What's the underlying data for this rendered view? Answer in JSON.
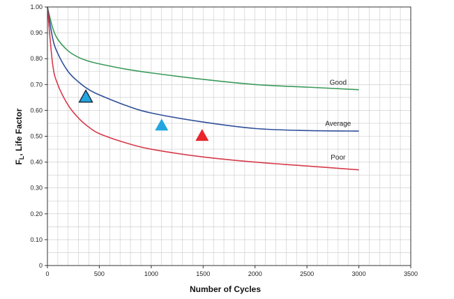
{
  "colors": {
    "good": "#3a9a5a",
    "average": "#2f4f9a",
    "poor": "#d63a4a",
    "marker_blue": "#22a6e0",
    "marker_red": "#e8262c",
    "grid": "#c8c8c8",
    "axis": "#333333"
  },
  "chart_data": {
    "type": "line",
    "xlabel": "Number of Cycles",
    "ylabel_main": "F",
    "ylabel_sub": "L",
    "ylabel_rest": ", Life Factor",
    "xlim": [
      0,
      3500
    ],
    "ylim": [
      0,
      1.0
    ],
    "grid": true,
    "x_ticks": [
      0,
      500,
      1000,
      1500,
      2000,
      2500,
      3000,
      3500
    ],
    "y_ticks": [
      0,
      0.1,
      0.2,
      0.3,
      0.4,
      0.5,
      0.6,
      0.7,
      0.8,
      0.9,
      1.0
    ],
    "x_tick_labels": [
      "0",
      "500",
      "1000",
      "1500",
      "2000",
      "2500",
      "3000",
      "3500"
    ],
    "y_tick_labels": [
      "0",
      "0.10",
      "0.20",
      "0.30",
      "0.40",
      "0.50",
      "0.60",
      "0.70",
      "0.80",
      "0.90",
      "1.00"
    ],
    "series": [
      {
        "name": "Good",
        "color_key": "good",
        "x": [
          0,
          50,
          100,
          200,
          300,
          400,
          500,
          750,
          1000,
          1500,
          2000,
          2500,
          3000
        ],
        "y": [
          1.0,
          0.92,
          0.875,
          0.83,
          0.805,
          0.79,
          0.78,
          0.76,
          0.745,
          0.72,
          0.7,
          0.69,
          0.68
        ]
      },
      {
        "name": "Average",
        "color_key": "average",
        "x": [
          0,
          50,
          100,
          200,
          300,
          400,
          500,
          750,
          1000,
          1500,
          2000,
          2500,
          3000
        ],
        "y": [
          1.0,
          0.88,
          0.82,
          0.75,
          0.71,
          0.68,
          0.66,
          0.62,
          0.59,
          0.555,
          0.53,
          0.522,
          0.52
        ]
      },
      {
        "name": "Poor",
        "color_key": "poor",
        "x": [
          0,
          50,
          100,
          200,
          300,
          400,
          500,
          750,
          1000,
          1500,
          2000,
          2500,
          3000
        ],
        "y": [
          1.0,
          0.78,
          0.7,
          0.62,
          0.57,
          0.535,
          0.51,
          0.475,
          0.45,
          0.42,
          0.4,
          0.385,
          0.37
        ]
      }
    ],
    "curve_labels": [
      {
        "text": "Good",
        "x": 2800,
        "y": 0.7
      },
      {
        "text": "Average",
        "x": 2800,
        "y": 0.54
      },
      {
        "text": "Poor",
        "x": 2800,
        "y": 0.41
      }
    ],
    "markers": [
      {
        "shape": "triangle",
        "color_key": "marker_blue",
        "outlined": true,
        "x": 370,
        "y": 0.655
      },
      {
        "shape": "triangle",
        "color_key": "marker_blue",
        "outlined": false,
        "x": 1100,
        "y": 0.545
      },
      {
        "shape": "triangle",
        "color_key": "marker_red",
        "outlined": false,
        "x": 1490,
        "y": 0.505
      }
    ]
  }
}
